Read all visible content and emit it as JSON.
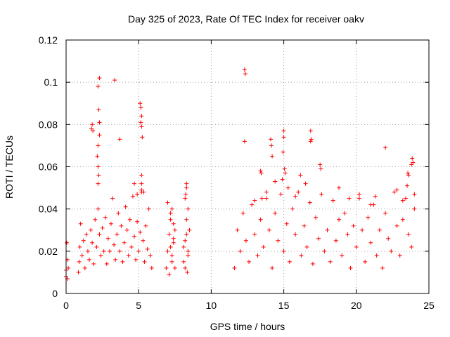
{
  "chart_data": {
    "type": "scatter",
    "title": "Day 325 of 2023, Rate Of TEC Index for receiver oakv",
    "xlabel": "GPS time / hours",
    "ylabel": "ROTI / TECUs",
    "xlim": [
      0,
      25
    ],
    "ylim": [
      0,
      0.12
    ],
    "grid": true,
    "xticks": [
      0,
      5,
      10,
      15,
      20,
      25
    ],
    "xtick_labels": [
      "0",
      "5",
      "10",
      "15",
      "20",
      "25"
    ],
    "yticks": [
      0,
      0.02,
      0.04,
      0.06,
      0.08,
      0.1,
      0.12
    ],
    "ytick_labels": [
      "0",
      "0.02",
      "0.04",
      "0.06",
      "0.08",
      "0.1",
      "0.12"
    ],
    "marker": "+",
    "color": "#ff0000",
    "series": [
      {
        "name": "ROTI",
        "x": [
          0.0,
          0.0,
          0.05,
          0.1,
          0.1,
          0.15,
          0.85,
          0.9,
          0.95,
          1.0,
          1.1,
          1.2,
          1.3,
          1.4,
          1.5,
          1.6,
          1.7,
          1.8,
          1.9,
          2.0,
          2.1,
          2.2,
          2.3,
          2.4,
          2.5,
          2.6,
          2.7,
          2.8,
          2.9,
          3.0,
          3.1,
          3.2,
          3.3,
          3.4,
          3.5,
          3.6,
          3.7,
          3.8,
          3.9,
          4.0,
          4.1,
          4.2,
          4.3,
          4.4,
          4.5,
          4.6,
          4.7,
          4.8,
          4.9,
          5.0,
          5.1,
          5.2,
          5.3,
          5.4,
          5.5,
          5.6,
          5.7,
          5.8,
          5.9,
          1.75,
          1.8,
          1.85,
          2.15,
          2.2,
          2.25,
          2.2,
          2.25,
          2.3,
          2.3,
          2.2,
          2.2,
          2.3,
          3.35,
          3.7,
          5.1,
          5.15,
          5.2,
          5.2,
          5.15,
          5.25,
          5.2,
          5.2,
          5.2,
          4.7,
          4.9,
          5.35,
          6.9,
          7.0,
          7.1,
          7.2,
          7.3,
          7.4,
          7.5,
          7.0,
          7.2,
          7.4,
          7.1,
          7.3,
          7.5,
          7.2,
          7.4,
          7.3,
          8.1,
          8.2,
          8.3,
          8.4,
          8.5,
          8.2,
          8.3,
          8.4,
          8.2,
          8.3,
          8.1,
          8.3,
          8.4,
          8.25,
          8.35,
          11.6,
          11.8,
          12.0,
          12.2,
          12.4,
          12.6,
          12.8,
          13.0,
          13.2,
          13.4,
          13.6,
          13.8,
          14.0,
          14.2,
          14.4,
          14.6,
          14.8,
          15.0,
          15.2,
          15.4,
          15.6,
          15.8,
          16.0,
          16.2,
          16.4,
          16.6,
          16.8,
          17.0,
          17.2,
          17.4,
          17.6,
          17.8,
          18.0,
          18.2,
          18.4,
          18.6,
          18.8,
          19.0,
          19.2,
          19.4,
          19.6,
          19.8,
          20.0,
          20.2,
          20.4,
          20.6,
          20.8,
          21.0,
          21.2,
          21.4,
          21.6,
          21.8,
          22.0,
          22.2,
          22.4,
          22.6,
          22.8,
          23.0,
          23.2,
          23.4,
          23.6,
          23.8,
          24.0,
          12.3,
          12.35,
          12.3,
          13.45,
          13.5,
          13.4,
          14.1,
          14.15,
          14.2,
          14.9,
          15.0,
          15.0,
          14.95,
          15.05,
          15.1,
          16.15,
          16.85,
          16.9,
          16.85,
          17.5,
          17.55,
          22.0,
          23.55,
          23.6,
          23.85,
          23.9,
          23.8,
          23.5,
          16.5,
          18.8,
          19.5,
          20.2,
          21.0,
          21.3,
          22.8,
          23.2,
          24.0,
          15.3,
          15.8,
          14.4,
          13.0,
          13.8
        ],
        "y": [
          0.008,
          0.011,
          0.024,
          0.016,
          0.007,
          0.012,
          0.01,
          0.015,
          0.022,
          0.033,
          0.018,
          0.025,
          0.012,
          0.028,
          0.02,
          0.016,
          0.03,
          0.024,
          0.014,
          0.035,
          0.022,
          0.04,
          0.028,
          0.018,
          0.031,
          0.02,
          0.036,
          0.014,
          0.026,
          0.02,
          0.033,
          0.045,
          0.023,
          0.016,
          0.028,
          0.038,
          0.02,
          0.032,
          0.015,
          0.024,
          0.041,
          0.03,
          0.018,
          0.035,
          0.022,
          0.046,
          0.027,
          0.016,
          0.034,
          0.02,
          0.029,
          0.048,
          0.025,
          0.015,
          0.032,
          0.021,
          0.04,
          0.018,
          0.012,
          0.078,
          0.08,
          0.077,
          0.065,
          0.06,
          0.056,
          0.07,
          0.087,
          0.081,
          0.102,
          0.098,
          0.052,
          0.075,
          0.101,
          0.073,
          0.09,
          0.088,
          0.084,
          0.079,
          0.081,
          0.074,
          0.056,
          0.052,
          0.049,
          0.052,
          0.047,
          0.048,
          0.012,
          0.02,
          0.028,
          0.035,
          0.015,
          0.024,
          0.03,
          0.043,
          0.038,
          0.026,
          0.009,
          0.018,
          0.012,
          0.022,
          0.033,
          0.04,
          0.015,
          0.025,
          0.035,
          0.02,
          0.03,
          0.045,
          0.052,
          0.04,
          0.012,
          0.028,
          0.022,
          0.05,
          0.018,
          0.047,
          0.01,
          0.012,
          0.03,
          0.02,
          0.038,
          0.025,
          0.015,
          0.042,
          0.028,
          0.018,
          0.035,
          0.022,
          0.045,
          0.03,
          0.012,
          0.038,
          0.025,
          0.047,
          0.02,
          0.033,
          0.015,
          0.04,
          0.028,
          0.048,
          0.018,
          0.032,
          0.022,
          0.043,
          0.014,
          0.036,
          0.026,
          0.047,
          0.02,
          0.03,
          0.015,
          0.044,
          0.025,
          0.035,
          0.018,
          0.038,
          0.028,
          0.012,
          0.032,
          0.022,
          0.045,
          0.03,
          0.015,
          0.036,
          0.024,
          0.042,
          0.018,
          0.03,
          0.012,
          0.038,
          0.026,
          0.02,
          0.048,
          0.032,
          0.018,
          0.035,
          0.045,
          0.028,
          0.022,
          0.04,
          0.106,
          0.104,
          0.072,
          0.057,
          0.045,
          0.058,
          0.073,
          0.07,
          0.065,
          0.054,
          0.077,
          0.074,
          0.067,
          0.059,
          0.057,
          0.056,
          0.077,
          0.073,
          0.072,
          0.061,
          0.059,
          0.069,
          0.057,
          0.056,
          0.064,
          0.062,
          0.061,
          0.051,
          0.052,
          0.05,
          0.045,
          0.047,
          0.042,
          0.046,
          0.049,
          0.044,
          0.047,
          0.05,
          0.046,
          0.053,
          0.044,
          0.048
        ]
      }
    ]
  }
}
